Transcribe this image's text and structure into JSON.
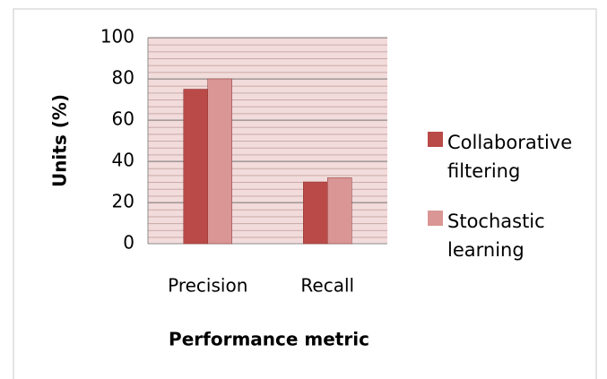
{
  "chart_data": {
    "type": "bar",
    "categories": [
      "Precision",
      "Recall"
    ],
    "series": [
      {
        "name": "Collaborative filtering",
        "color": "#b94a48",
        "values": [
          75,
          30
        ]
      },
      {
        "name": "Stochastic learning",
        "color": "#d99694",
        "values": [
          80,
          32
        ]
      }
    ],
    "ylim": [
      0,
      100
    ],
    "yticks": [
      0,
      20,
      40,
      60,
      80,
      100
    ],
    "ylabel": "Units (%)",
    "xlabel": "Performance metric",
    "grid": true,
    "legend": "right"
  }
}
